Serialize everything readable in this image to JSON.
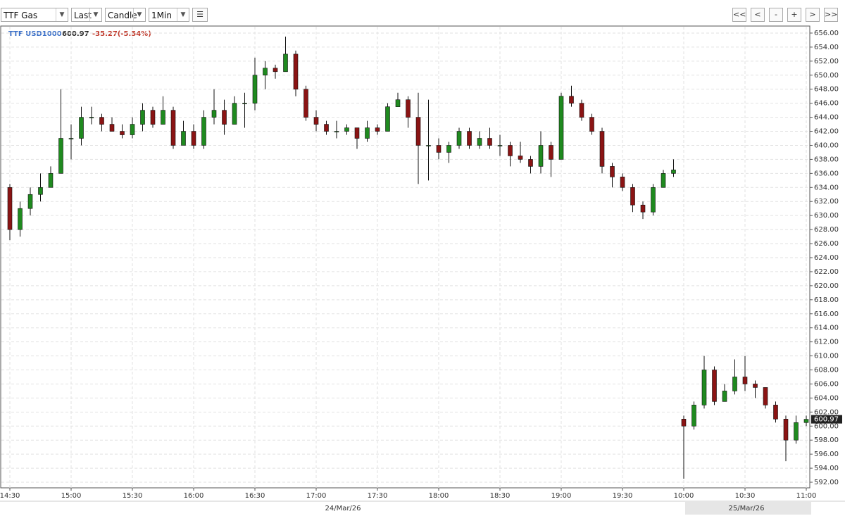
{
  "toolbar": {
    "symbol": "TTF Gas",
    "field": "Last",
    "style": "Candle",
    "interval": "1Min",
    "buttons": [
      "<<",
      "<",
      "-",
      "+",
      ">",
      ">>"
    ]
  },
  "chart_data": {
    "type": "candlestick",
    "symbol": "TTF USD1000",
    "last": 600.97,
    "change": "-35.27(-5.54%)",
    "up_color": "#1f8a1f",
    "down_color": "#8b1414",
    "grid": true,
    "categories": [
      "14:30",
      null,
      null,
      null,
      null,
      null,
      "15:00",
      null,
      null,
      null,
      null,
      null,
      "15:30",
      null,
      null,
      null,
      null,
      null,
      "16:00",
      null,
      null,
      null,
      null,
      null,
      "16:30",
      null,
      null,
      null,
      null,
      null,
      "17:00",
      null,
      null,
      null,
      null,
      null,
      "17:30",
      null,
      null,
      null,
      null,
      null,
      "18:00",
      null,
      null,
      null,
      null,
      null,
      "18:30",
      null,
      null,
      null,
      null,
      null,
      "19:00",
      null,
      null,
      null,
      null,
      null,
      "19:30",
      null,
      null,
      null,
      null,
      null,
      "10:00",
      null,
      null,
      null,
      null,
      null,
      "10:30",
      null,
      null,
      null,
      null,
      null,
      "11:00"
    ],
    "date_labels": [
      "24/Mar/26",
      "25/Mar/26"
    ],
    "open": [
      634,
      628,
      631,
      633,
      634,
      636,
      641,
      641,
      644,
      644,
      643,
      642,
      641.5,
      643,
      645,
      643,
      645,
      640,
      642,
      640,
      644,
      645,
      643,
      646,
      646,
      650,
      651,
      650.5,
      653,
      648,
      644,
      643,
      642,
      642,
      642.5,
      641,
      642.5,
      642,
      645.5,
      646.5,
      644,
      640,
      640,
      639,
      640,
      642,
      640,
      641,
      640,
      640,
      638.5,
      638,
      637,
      640,
      638,
      647,
      646,
      644,
      642,
      637,
      635.5,
      634,
      631.5,
      630.5,
      634,
      636,
      601,
      600,
      603,
      608,
      603.5,
      605,
      607,
      606,
      605.5,
      603,
      601,
      598,
      600.5
    ],
    "high": [
      634.5,
      632,
      634,
      636,
      637,
      648,
      643,
      645.5,
      645.5,
      644.5,
      644,
      643,
      644,
      646,
      645.5,
      647,
      645.5,
      643.5,
      643,
      645,
      648,
      646.5,
      647,
      647.5,
      652.5,
      652,
      651.5,
      655.5,
      653.5,
      648.5,
      645,
      643.5,
      643.5,
      643,
      642.5,
      643.5,
      643,
      646,
      647.5,
      647,
      647.5,
      646.5,
      641,
      640.5,
      642.5,
      642.5,
      642,
      642.5,
      641.5,
      640.5,
      640.5,
      638.5,
      642,
      640.5,
      647.5,
      648.5,
      646.5,
      644.5,
      642.5,
      637.5,
      636,
      634.5,
      632,
      634.5,
      636.5,
      638,
      601.5,
      603.5,
      610,
      608.5,
      606,
      609.5,
      610,
      606.5,
      605.5,
      603.5,
      601.5,
      601.5,
      601.5
    ],
    "low": [
      626.5,
      627,
      630,
      632,
      634,
      636,
      638,
      640,
      643,
      642,
      642,
      641,
      641,
      642,
      642.5,
      643,
      639.5,
      640,
      639.5,
      639.5,
      643,
      641.5,
      643,
      642.5,
      645,
      648,
      649.5,
      650.5,
      647,
      643.5,
      642,
      641.5,
      641,
      641.5,
      639.5,
      640.5,
      641.5,
      642,
      645.5,
      642.5,
      634.5,
      635,
      638,
      637.5,
      639.5,
      639.5,
      639.5,
      639.5,
      638.5,
      637,
      637.5,
      636,
      636,
      635.5,
      638,
      645.5,
      643.5,
      641.5,
      636,
      634,
      633.5,
      630.5,
      629.5,
      630,
      634,
      635.5,
      592.5,
      599.5,
      602.5,
      603,
      603.5,
      604.5,
      605,
      604,
      602.5,
      600.5,
      595,
      597.5,
      600
    ],
    "close": [
      628,
      631,
      633,
      634,
      636,
      641,
      641,
      644,
      644,
      643,
      642,
      641.5,
      643,
      645,
      643,
      645,
      640,
      642,
      640,
      644,
      645,
      643,
      646,
      646,
      650,
      651,
      650.5,
      653,
      648,
      644,
      643,
      642,
      642,
      642.5,
      641,
      642.5,
      642,
      645.5,
      646.5,
      644,
      640,
      640,
      639,
      640,
      642,
      640,
      641,
      640,
      640,
      638.5,
      638,
      637,
      640,
      638,
      647,
      646,
      644,
      642,
      637,
      635.5,
      634,
      631.5,
      630.5,
      634,
      636,
      636.5,
      600,
      603,
      608,
      603.5,
      605,
      607,
      606,
      605.5,
      603,
      601,
      598,
      600.5,
      600.97
    ],
    "ylim": [
      591.2,
      657
    ],
    "yticks": [
      {
        "value": 592,
        "label": "592.00"
      },
      {
        "value": 594,
        "label": "594.00"
      },
      {
        "value": 596,
        "label": "596.00"
      },
      {
        "value": 598,
        "label": "598.00"
      },
      {
        "value": 600,
        "label": "600.00"
      },
      {
        "value": 602,
        "label": "602.00"
      },
      {
        "value": 604,
        "label": "604.00"
      },
      {
        "value": 606,
        "label": "606.00"
      },
      {
        "value": 608,
        "label": "608.00"
      },
      {
        "value": 610,
        "label": "610.00"
      },
      {
        "value": 612,
        "label": "612.00"
      },
      {
        "value": 614,
        "label": "614.00"
      },
      {
        "value": 616,
        "label": "616.00"
      },
      {
        "value": 618,
        "label": "618.00"
      },
      {
        "value": 620,
        "label": "620.00"
      },
      {
        "value": 622,
        "label": "622.00"
      },
      {
        "value": 624,
        "label": "624.00"
      },
      {
        "value": 626,
        "label": "626.00"
      },
      {
        "value": 628,
        "label": "628.00"
      },
      {
        "value": 630,
        "label": "630.00"
      },
      {
        "value": 632,
        "label": "632.00"
      },
      {
        "value": 634,
        "label": "634.00"
      },
      {
        "value": 636,
        "label": "636.00"
      },
      {
        "value": 638,
        "label": "638.00"
      },
      {
        "value": 640,
        "label": "640.00"
      },
      {
        "value": 642,
        "label": "642.00"
      },
      {
        "value": 644,
        "label": "644.00"
      },
      {
        "value": 646,
        "label": "646.00"
      },
      {
        "value": 648,
        "label": "648.00"
      },
      {
        "value": 650,
        "label": "650.00"
      },
      {
        "value": 652,
        "label": "652.00"
      },
      {
        "value": 654,
        "label": "654.00"
      },
      {
        "value": 656,
        "label": "656.00"
      }
    ]
  }
}
